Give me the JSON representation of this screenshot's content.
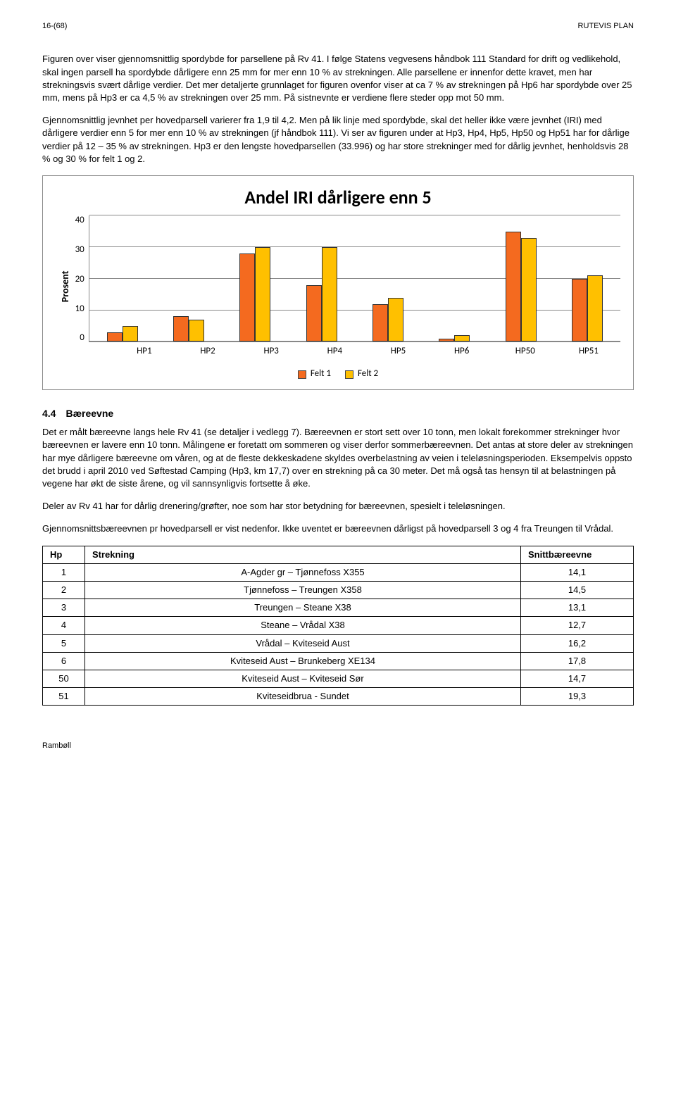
{
  "header": {
    "left": "16-(68)",
    "right": "RUTEVIS PLAN"
  },
  "para1": "Figuren over viser gjennomsnittlig spordybde for parsellene på Rv 41. I følge Statens vegvesens håndbok 111 Standard for drift og vedlikehold, skal ingen parsell ha spordybde dårligere enn 25 mm for mer enn 10 % av strekningen. Alle parsellene er innenfor dette kravet, men har strekningsvis svært dårlige verdier. Det mer detaljerte grunnlaget for figuren ovenfor viser at ca 7 % av strekningen på Hp6 har spordybde over 25 mm, mens på Hp3 er ca 4,5 % av strekningen over 25 mm. På sistnevnte er verdiene flere steder opp mot 50 mm.",
  "para2": "Gjennomsnittlig jevnhet per hovedparsell varierer fra 1,9 til 4,2. Men på lik linje med spordybde, skal det heller ikke være jevnhet (IRI) med dårligere verdier enn 5 for mer enn 10 % av strekningen (jf håndbok 111). Vi ser av figuren under at Hp3, Hp4, Hp5, Hp50 og Hp51 har for dårlige verdier på 12 – 35 % av strekningen. Hp3 er den lengste hovedparsellen (33.996) og har store strekninger med for dårlig jevnhet, henholdsvis 28 % og 30 % for felt 1 og 2.",
  "chart": {
    "title": "Andel IRI dårligere enn 5",
    "ylabel": "Prosent",
    "ymax": 40,
    "ytick_step": 10,
    "categories": [
      "HP1",
      "HP2",
      "HP3",
      "HP4",
      "HP5",
      "HP6",
      "HP50",
      "HP51"
    ],
    "series": [
      {
        "name": "Felt 1",
        "color": "#f46a1f",
        "values": [
          3,
          8,
          28,
          18,
          12,
          1,
          35,
          20
        ]
      },
      {
        "name": "Felt 2",
        "color": "#ffc000",
        "values": [
          5,
          7,
          30,
          30,
          14,
          2,
          33,
          21
        ]
      }
    ],
    "grid_color": "#888888",
    "bar_border": "#333333",
    "background": "#ffffff"
  },
  "section": {
    "number": "4.4",
    "title": "Bæreevne"
  },
  "para3": "Det er målt bæreevne langs hele Rv 41 (se detaljer i vedlegg 7). Bæreevnen er stort sett over 10 tonn, men lokalt forekommer strekninger hvor bæreevnen er lavere enn 10 tonn. Målingene er foretatt om sommeren og viser derfor sommerbæreevnen. Det antas at store deler av strekningen har mye dårligere bæreevne om våren, og at de fleste dekkeskadene skyldes overbelastning av veien i teleløsningsperioden. Eksempelvis oppsto det brudd i april 2010 ved Søftestad Camping (Hp3, km 17,7) over en strekning på ca 30 meter. Det må også tas hensyn til at belastningen på vegene har økt de siste årene, og vil sannsynligvis fortsette å øke.",
  "para4": "Deler av Rv 41 har for dårlig drenering/grøfter, noe som har stor betydning for bæreevnen, spesielt i teleløsningen.",
  "para5": "Gjennomsnittsbæreevnen pr hovedparsell er vist nedenfor. Ikke uventet er bæreevnen dårligst på hovedparsell 3 og 4 fra Treungen til Vrådal.",
  "table": {
    "headers": [
      "Hp",
      "Strekning",
      "Snittbæreevne"
    ],
    "rows": [
      [
        "1",
        "A-Agder gr – Tjønnefoss X355",
        "14,1"
      ],
      [
        "2",
        "Tjønnefoss – Treungen X358",
        "14,5"
      ],
      [
        "3",
        "Treungen – Steane X38",
        "13,1"
      ],
      [
        "4",
        "Steane – Vrådal X38",
        "12,7"
      ],
      [
        "5",
        "Vrådal – Kviteseid Aust",
        "16,2"
      ],
      [
        "6",
        "Kviteseid Aust – Brunkeberg XE134",
        "17,8"
      ],
      [
        "50",
        "Kviteseid Aust – Kviteseid Sør",
        "14,7"
      ],
      [
        "51",
        "Kviteseidbrua - Sundet",
        "19,3"
      ]
    ]
  },
  "footer": "Rambøll"
}
